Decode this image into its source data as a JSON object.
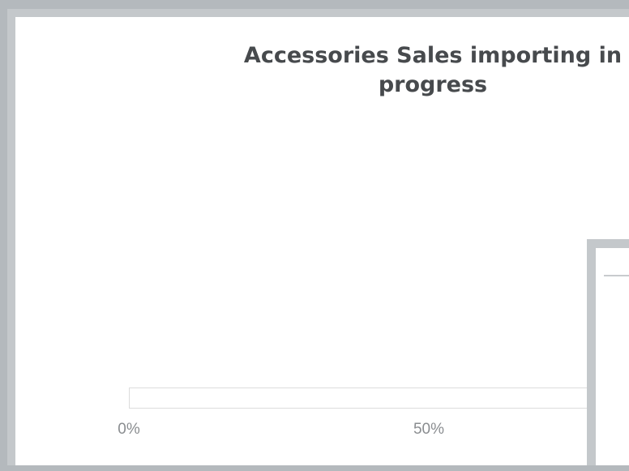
{
  "dialog": {
    "title": "Accessories Sales importing in progress"
  },
  "progress": {
    "fraction": 0.0,
    "tick_labels": [
      {
        "label": "0%",
        "value": 0
      },
      {
        "label": "50%",
        "value": 0.5
      }
    ]
  },
  "colors": {
    "background": "#b4b9bd",
    "frame": "#c4c8cb",
    "panel": "#ffffff",
    "title_text": "#474a4d",
    "tick_text": "#8a8d90",
    "track_border": "#dcdcdc"
  }
}
